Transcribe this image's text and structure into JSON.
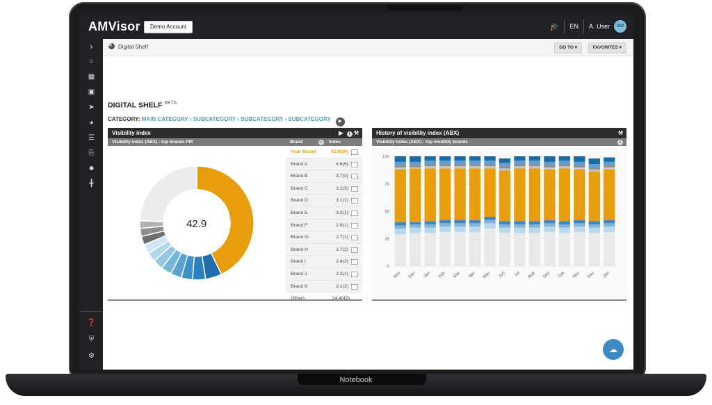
{
  "device": {
    "label": "Notebook"
  },
  "app": {
    "logo_text": "AMVisor",
    "demo_button": "Demo Account"
  },
  "topbar": {
    "language": "EN",
    "user_name": "A. User",
    "user_initials": "AU"
  },
  "sidebar": {
    "icons": [
      "chevron-right-icon",
      "home-icon",
      "table-icon",
      "devices-icon",
      "rocket-icon",
      "pie-chart-icon",
      "list-icon",
      "file-export-icon",
      "users-icon",
      "signpost-icon",
      "help-icon",
      "shield-icon",
      "gear-icon"
    ]
  },
  "breadcrumb": {
    "label": "Digital Shelf"
  },
  "subbar": {
    "goto": "GO TO",
    "favorites": "FAVORITES"
  },
  "page": {
    "title": "DIGITAL SHELF",
    "badge": "BETA",
    "category_label": "CATEGORY:",
    "category_path": "MAIN CATEGORY › SUBCATEGORY › SUBCATEGORY › SUBCATEGORY"
  },
  "colors": {
    "accent_orange": "#e89d0b",
    "brand_blue": "#5a9ec4",
    "dark_header": "#2c2c2c"
  },
  "visibility_panel": {
    "title": "Visibility index",
    "subtitle": "Visibility index (ABX) - top brands PM",
    "col_brand": "Brand",
    "col_index": "Index",
    "center_value": "42.9",
    "rows": [
      {
        "brand": "Your Brand",
        "index": "42.9(36)",
        "highlight": true
      },
      {
        "brand": "Brand A",
        "index": "4.6(5)"
      },
      {
        "brand": "Brand B",
        "index": "3.7(3)"
      },
      {
        "brand": "Brand C",
        "index": "3.2(3)"
      },
      {
        "brand": "Brand D",
        "index": "3.1(1)"
      },
      {
        "brand": "Brand E",
        "index": "3.0(1)"
      },
      {
        "brand": "Brand F",
        "index": "2.9(1)"
      },
      {
        "brand": "Brand G",
        "index": "2.7(1)"
      },
      {
        "brand": "Brand H",
        "index": "2.7(2)"
      },
      {
        "brand": "Brand I",
        "index": "2.4(2)"
      },
      {
        "brand": "Brand J",
        "index": "2.3(1)"
      },
      {
        "brand": "Brand K",
        "index": "2.1(2)"
      },
      {
        "brand": "Others",
        "index": "24.4(42)"
      }
    ]
  },
  "history_panel": {
    "title": "History of visibility index (ABX)",
    "subtitle": "Visibility index (ABX) - top monthly brands"
  },
  "chart_data": [
    {
      "type": "pie",
      "title": "",
      "center_label": "42.9",
      "categories": [
        "Your Brand",
        "Brand A",
        "Brand B",
        "Brand C",
        "Brand D",
        "Brand E",
        "Brand F",
        "Brand G",
        "Brand H",
        "Brand I",
        "Brand J",
        "Brand K",
        "Others"
      ],
      "values": [
        42.9,
        4.6,
        3.7,
        3.2,
        3.1,
        3.0,
        2.9,
        2.7,
        2.7,
        2.4,
        2.3,
        2.1,
        24.4
      ],
      "colors": [
        "#e89d0b",
        "#1f6fb0",
        "#2c80bd",
        "#3e8fc7",
        "#5aa2d1",
        "#77b5da",
        "#95c6e2",
        "#b3d7eb",
        "#cfe6f2",
        "#6d6d6d",
        "#8e8e8e",
        "#b0b0b0",
        "#ececec"
      ]
    },
    {
      "type": "bar",
      "stacked": true,
      "title": "",
      "xlabel": "",
      "ylabel": "",
      "categories": [
        "Nov",
        "Dec",
        "Jan",
        "Feb",
        "Mar",
        "Apr",
        "May",
        "Jun",
        "Jul",
        "Aug",
        "Sep",
        "Oct",
        "Nov",
        "Dec",
        "Jan"
      ],
      "ylim": [
        0,
        100
      ],
      "yticks": [
        0,
        25,
        50,
        75,
        100
      ],
      "grid": true,
      "series": [
        {
          "color": "#e9e9e9",
          "values": [
            29,
            30,
            30,
            31,
            31,
            31,
            34,
            30,
            30,
            30,
            31,
            30,
            31,
            30,
            31
          ]
        },
        {
          "color": "#b9d8ec",
          "values": [
            5,
            5,
            5,
            5,
            5,
            5,
            5,
            5,
            5,
            5,
            5,
            5,
            5,
            5,
            5
          ]
        },
        {
          "color": "#7fb3d9",
          "values": [
            3,
            3,
            3,
            3,
            3,
            3,
            3,
            3,
            3,
            3,
            3,
            3,
            3,
            3,
            3
          ]
        },
        {
          "color": "#3f86c2",
          "values": [
            3,
            2,
            3,
            3,
            3,
            3,
            3,
            3,
            3,
            3,
            3,
            3,
            3,
            3,
            3
          ]
        },
        {
          "color": "#e89d0b",
          "values": [
            48,
            49,
            48,
            47,
            47,
            47,
            44,
            46,
            48,
            48,
            46,
            48,
            46,
            45,
            46
          ]
        },
        {
          "color": "#c4c4c4",
          "values": [
            2,
            1,
            2,
            2,
            2,
            2,
            2,
            2,
            2,
            2,
            2,
            2,
            2,
            2,
            2
          ]
        },
        {
          "color": "#8c8c8c",
          "values": [
            2,
            2,
            2,
            2,
            2,
            2,
            2,
            2,
            2,
            2,
            2,
            2,
            2,
            2,
            2
          ]
        },
        {
          "color": "#5d9fd0",
          "values": [
            3,
            3,
            3,
            3,
            3,
            3,
            3,
            3,
            3,
            3,
            3,
            3,
            3,
            3,
            3
          ]
        },
        {
          "color": "#1b6aa8",
          "values": [
            5,
            5,
            4,
            4,
            4,
            4,
            4,
            4,
            4,
            4,
            5,
            4,
            5,
            5,
            4
          ]
        }
      ]
    }
  ]
}
